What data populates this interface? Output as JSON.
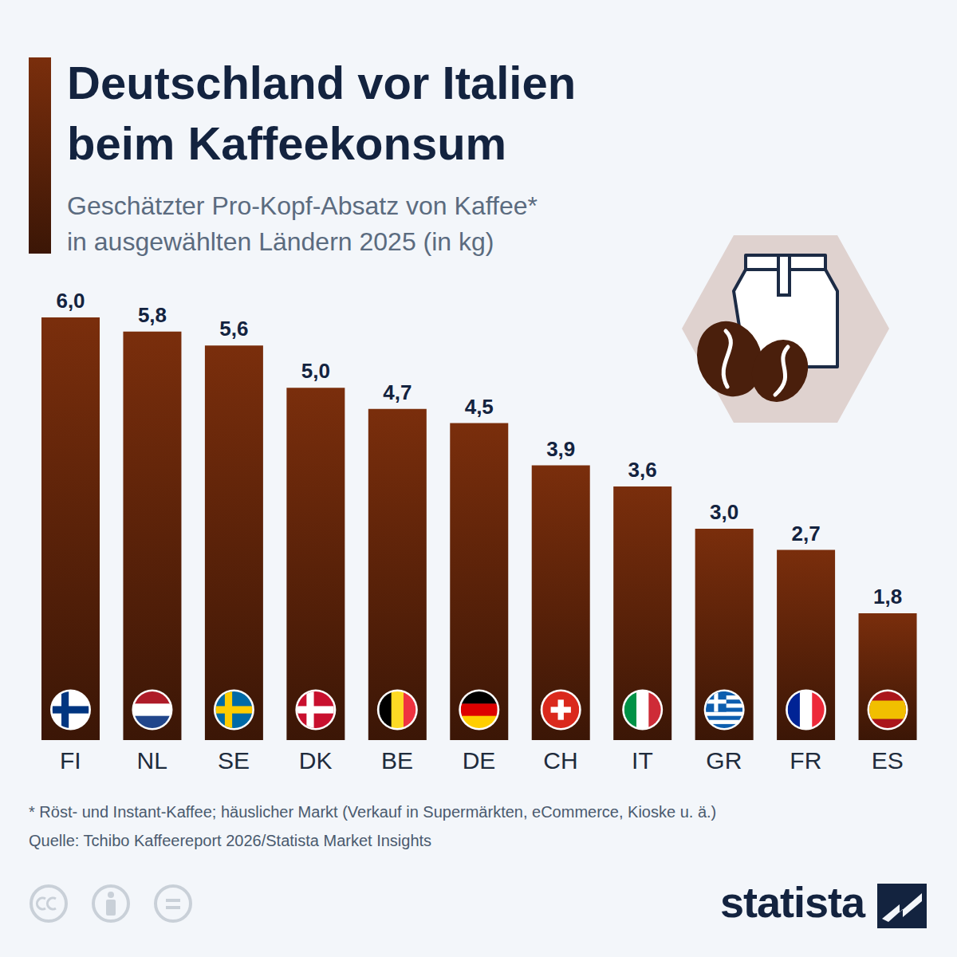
{
  "chart_data": {
    "type": "bar",
    "title": [
      "Deutschland vor Italien",
      "beim Kaffeekonsum"
    ],
    "subtitle": [
      "Geschätzter Pro-Kopf-Absatz von Kaffee*",
      "in ausgewählten Ländern 2025 (in kg)"
    ],
    "categories": [
      "FI",
      "NL",
      "SE",
      "DK",
      "BE",
      "DE",
      "CH",
      "IT",
      "GR",
      "FR",
      "ES"
    ],
    "values": [
      6.0,
      5.8,
      5.6,
      5.0,
      4.7,
      4.5,
      3.9,
      3.6,
      3.0,
      2.7,
      1.8
    ],
    "value_labels": [
      "6,0",
      "5,8",
      "5,6",
      "5,0",
      "4,7",
      "4,5",
      "3,9",
      "3,6",
      "3,0",
      "2,7",
      "1,8"
    ],
    "color": "#7a2e0c",
    "ylim": [
      0,
      6
    ],
    "grid": false,
    "data_labels": true,
    "tick_labels": "x",
    "footnote": "* Röst- und Instant-Kaffee; häuslicher Markt (Verkauf in Supermärkten, eCommerce, Kioske u. ä.)",
    "source": "Quelle: Tchibo Kaffeereport 2026/Statista Market Insights",
    "logo": "statista"
  }
}
